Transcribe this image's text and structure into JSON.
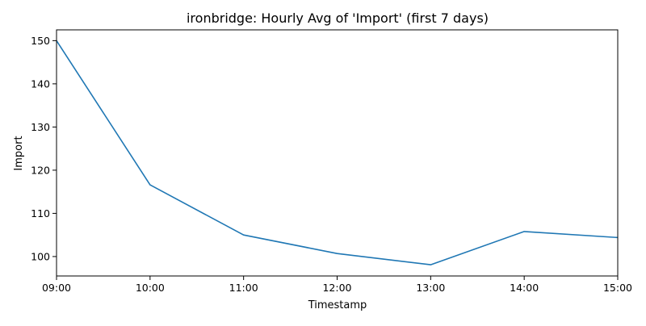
{
  "chart_data": {
    "type": "line",
    "title": "ironbridge: Hourly Avg of 'Import' (first 7 days)",
    "xlabel": "Timestamp",
    "ylabel": "Import",
    "x": [
      "09:00",
      "10:00",
      "11:00",
      "12:00",
      "13:00",
      "14:00",
      "15:00"
    ],
    "y_ticks": [
      100,
      110,
      120,
      130,
      140,
      150
    ],
    "ylim": [
      95.5,
      152.5
    ],
    "grid": false,
    "series": [
      {
        "values": [
          150,
          116.6,
          105.0,
          100.7,
          98.1,
          105.8,
          104.4
        ],
        "color": "#1f77b4"
      }
    ]
  }
}
